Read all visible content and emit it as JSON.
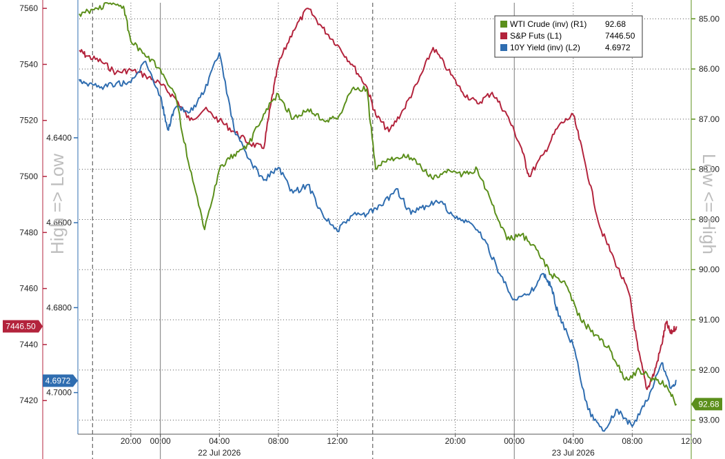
{
  "colors": {
    "wti": "#5b8f1b",
    "spx": "#b3233c",
    "yield": "#2f6db0",
    "grid": "#555555",
    "axis_side_label": "#bdbdbd"
  },
  "side_labels": {
    "left": "High => Low",
    "right": "Low <= High"
  },
  "legend": [
    {
      "name": "WTI Crude (inv) (R1)",
      "value": "92.68",
      "color_key": "wti"
    },
    {
      "name": "S&P Futs (L1)",
      "value": "7446.50",
      "color_key": "spx"
    },
    {
      "name": "10Y Yield (inv) (L2)",
      "value": "4.6972",
      "color_key": "yield"
    }
  ],
  "chart_data": {
    "type": "line",
    "x_unit": "hours from 22 Jul 2026 00:00",
    "xlim": [
      -5.5,
      36
    ],
    "x_ticks": [
      {
        "x": -2,
        "label": "20:00"
      },
      {
        "x": 0,
        "label": "00:00"
      },
      {
        "x": 4,
        "label": "04:00"
      },
      {
        "x": 8,
        "label": "08:00"
      },
      {
        "x": 12,
        "label": "12:00"
      },
      {
        "x": 20,
        "label": "20:00"
      },
      {
        "x": 24,
        "label": "00:00"
      },
      {
        "x": 28,
        "label": "04:00"
      },
      {
        "x": 32,
        "label": "08:00"
      },
      {
        "x": 36,
        "label": "12:00"
      }
    ],
    "date_labels": [
      {
        "x": 4,
        "label": "22 Jul 2026"
      },
      {
        "x": 28,
        "label": "23 Jul 2026"
      }
    ],
    "session_lines_x": [
      -4.6,
      14.4
    ],
    "axes": {
      "left1": {
        "ylim": [
          7408,
          7562
        ],
        "ticks": [
          "7420",
          "7440",
          "7460",
          "7480",
          "7500",
          "7520",
          "7540",
          "7560"
        ]
      },
      "left2": {
        "ylim": [
          4.6082,
          4.7098
        ],
        "inverted": true,
        "ticks": [
          "4.6400",
          "4.6600",
          "4.6800",
          "4.7000"
        ]
      },
      "right1": {
        "ylim": [
          84.68,
          93.28
        ],
        "inverted": true,
        "ticks": [
          "85.00",
          "86.00",
          "87.00",
          "88.00",
          "89.00",
          "90.00",
          "91.00",
          "92.00",
          "93.00"
        ]
      }
    },
    "last_value_tags": [
      {
        "axis": "left1",
        "value": 7446.5,
        "label": "7446.50",
        "color_key": "spx"
      },
      {
        "axis": "left2",
        "value": 4.6972,
        "label": "4.6972",
        "color_key": "yield"
      },
      {
        "axis": "right1",
        "value": 92.68,
        "label": "92.68",
        "color_key": "wti"
      }
    ],
    "series": [
      {
        "name": "S&P Futs (L1)",
        "axis": "left1",
        "color_key": "spx",
        "points": [
          [
            -5.5,
            7545
          ],
          [
            -5,
            7543
          ],
          [
            -4,
            7541
          ],
          [
            -3,
            7537
          ],
          [
            -2,
            7538
          ],
          [
            -1,
            7536
          ],
          [
            0,
            7533
          ],
          [
            1,
            7528
          ],
          [
            2,
            7520
          ],
          [
            3,
            7524
          ],
          [
            4,
            7520
          ],
          [
            5,
            7516
          ],
          [
            6,
            7512
          ],
          [
            7,
            7510
          ],
          [
            7.5,
            7526
          ],
          [
            8,
            7540
          ],
          [
            9,
            7552
          ],
          [
            10,
            7560
          ],
          [
            11,
            7553
          ],
          [
            12,
            7547
          ],
          [
            13,
            7540
          ],
          [
            14,
            7532
          ],
          [
            14.6,
            7522
          ],
          [
            15.5,
            7516
          ],
          [
            16.5,
            7524
          ],
          [
            17.5,
            7534
          ],
          [
            18.5,
            7546
          ],
          [
            19.5,
            7538
          ],
          [
            20.5,
            7530
          ],
          [
            21.5,
            7526
          ],
          [
            22.5,
            7530
          ],
          [
            23.5,
            7522
          ],
          [
            24.5,
            7510
          ],
          [
            25,
            7500
          ],
          [
            26,
            7508
          ],
          [
            27,
            7518
          ],
          [
            28,
            7522
          ],
          [
            28.8,
            7505
          ],
          [
            29.8,
            7482
          ],
          [
            30.8,
            7470
          ],
          [
            31.8,
            7458
          ],
          [
            32.4,
            7438
          ],
          [
            33,
            7424
          ],
          [
            33.5,
            7430
          ],
          [
            34,
            7440
          ],
          [
            34.3,
            7448
          ],
          [
            34.6,
            7444
          ],
          [
            35,
            7446.5
          ]
        ]
      },
      {
        "name": "10Y Yield (inv) (L2)",
        "axis": "left2",
        "color_key": "yield",
        "points": [
          [
            -5.5,
            4.6262
          ],
          [
            -5,
            4.6272
          ],
          [
            -4,
            4.628
          ],
          [
            -3,
            4.6272
          ],
          [
            -2,
            4.627
          ],
          [
            -1,
            4.622
          ],
          [
            0,
            4.6302
          ],
          [
            0.5,
            4.6381
          ],
          [
            1,
            4.633
          ],
          [
            2,
            4.634
          ],
          [
            3,
            4.629
          ],
          [
            4,
            4.62
          ],
          [
            5,
            4.638
          ],
          [
            6,
            4.645
          ],
          [
            7,
            4.65
          ],
          [
            8,
            4.647
          ],
          [
            9,
            4.653
          ],
          [
            10,
            4.651
          ],
          [
            11,
            4.658
          ],
          [
            12,
            4.662
          ],
          [
            13,
            4.6583
          ],
          [
            14,
            4.658
          ],
          [
            15,
            4.656
          ],
          [
            16,
            4.652
          ],
          [
            17,
            4.658
          ],
          [
            18,
            4.656
          ],
          [
            19,
            4.655
          ],
          [
            20,
            4.659
          ],
          [
            21,
            4.66
          ],
          [
            22,
            4.664
          ],
          [
            23,
            4.672
          ],
          [
            24,
            4.678
          ],
          [
            25,
            4.677
          ],
          [
            26,
            4.672
          ],
          [
            26.5,
            4.675
          ],
          [
            27,
            4.682
          ],
          [
            28,
            4.689
          ],
          [
            29,
            4.704
          ],
          [
            30,
            4.709
          ],
          [
            31,
            4.704
          ],
          [
            32,
            4.708
          ],
          [
            33,
            4.702
          ],
          [
            34,
            4.693
          ],
          [
            34.6,
            4.699
          ],
          [
            35,
            4.6972
          ]
        ]
      },
      {
        "name": "WTI Crude (inv) (R1)",
        "axis": "right1",
        "color_key": "wti",
        "points": [
          [
            -5.5,
            84.9
          ],
          [
            -4.5,
            84.82
          ],
          [
            -3.5,
            84.7
          ],
          [
            -2.5,
            84.75
          ],
          [
            -2,
            85.45
          ],
          [
            -1,
            85.75
          ],
          [
            0,
            86.0
          ],
          [
            1,
            86.5
          ],
          [
            2,
            88.0
          ],
          [
            3,
            89.2
          ],
          [
            4,
            88.0
          ],
          [
            5,
            87.7
          ],
          [
            6,
            87.5
          ],
          [
            7,
            86.9
          ],
          [
            8,
            86.5
          ],
          [
            9,
            87.0
          ],
          [
            10,
            86.8
          ],
          [
            11,
            87.0
          ],
          [
            12,
            87.0
          ],
          [
            13,
            86.4
          ],
          [
            14,
            86.4
          ],
          [
            14.6,
            88.0
          ],
          [
            15.5,
            87.8
          ],
          [
            16.5,
            87.7
          ],
          [
            17.5,
            87.9
          ],
          [
            18.5,
            88.2
          ],
          [
            19.5,
            88.0
          ],
          [
            20.5,
            88.1
          ],
          [
            21.5,
            88.0
          ],
          [
            22.5,
            88.7
          ],
          [
            23.5,
            89.4
          ],
          [
            24.5,
            89.3
          ],
          [
            25.5,
            89.6
          ],
          [
            26.5,
            90.1
          ],
          [
            27.5,
            90.3
          ],
          [
            28.5,
            91.0
          ],
          [
            29.5,
            91.3
          ],
          [
            30.5,
            91.6
          ],
          [
            31.5,
            92.2
          ],
          [
            32.5,
            92.0
          ],
          [
            33.5,
            92.2
          ],
          [
            34.3,
            92.3
          ],
          [
            35,
            92.68
          ]
        ]
      }
    ]
  }
}
